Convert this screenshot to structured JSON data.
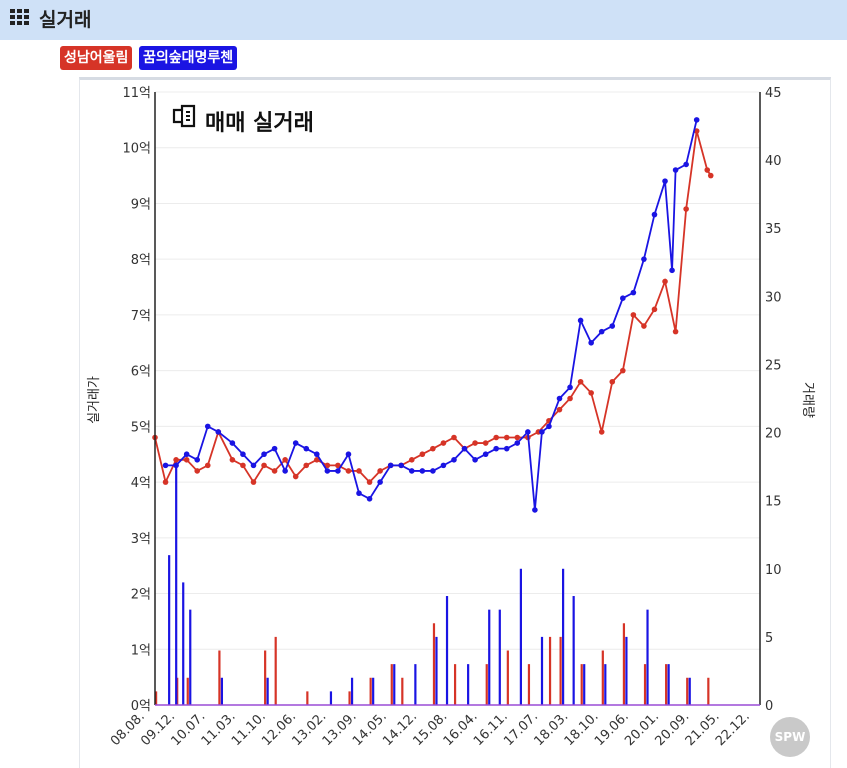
{
  "header": {
    "title": "실거래",
    "icon": "grid-icon"
  },
  "tags": [
    {
      "label": "성남어울림",
      "color": "#d63427"
    },
    {
      "label": "꿈의숲대명루첸",
      "color": "#1a14e3"
    }
  ],
  "chart_logo": {
    "text": "매매 실거래",
    "icon": "building-logo-icon"
  },
  "watermark": "SPW",
  "chart_data": {
    "type": "line",
    "left_axis": {
      "label": "실거래가",
      "range": [
        0,
        11
      ],
      "ticks": [
        "0억",
        "1억",
        "2억",
        "3억",
        "4억",
        "5억",
        "6억",
        "7억",
        "8억",
        "9억",
        "10억",
        "11억"
      ]
    },
    "right_axis": {
      "label": "거래량",
      "range": [
        0,
        45
      ],
      "ticks": [
        "0",
        "5",
        "10",
        "15",
        "20",
        "25",
        "30",
        "35",
        "40",
        "45"
      ]
    },
    "x_axis": {
      "range": [
        "2008-08",
        "2022-12"
      ],
      "ticks": [
        "08.08.",
        "09.12.",
        "10.07.",
        "11.03.",
        "11.10.",
        "12.06.",
        "13.02.",
        "13.09.",
        "14.05.",
        "14.12.",
        "15.08.",
        "16.04.",
        "16.11.",
        "17.07.",
        "18.03.",
        "18.10.",
        "19.06.",
        "20.01.",
        "20.09.",
        "21.05.",
        "22.12."
      ]
    },
    "grid": true,
    "series": [
      {
        "name": "성남어울림",
        "color": "#d63427",
        "type": "line",
        "points": [
          [
            "2008.08",
            4.8
          ],
          [
            "2008.11",
            4.0
          ],
          [
            "2009.02",
            4.4
          ],
          [
            "2009.05",
            4.4
          ],
          [
            "2009.08",
            4.2
          ],
          [
            "2009.11",
            4.3
          ],
          [
            "2010.02",
            4.9
          ],
          [
            "2010.06",
            4.4
          ],
          [
            "2010.09",
            4.3
          ],
          [
            "2010.12",
            4.0
          ],
          [
            "2011.03",
            4.3
          ],
          [
            "2011.06",
            4.2
          ],
          [
            "2011.09",
            4.4
          ],
          [
            "2011.12",
            4.1
          ],
          [
            "2012.03",
            4.3
          ],
          [
            "2012.06",
            4.4
          ],
          [
            "2012.09",
            4.3
          ],
          [
            "2012.12",
            4.3
          ],
          [
            "2013.03",
            4.2
          ],
          [
            "2013.06",
            4.2
          ],
          [
            "2013.09",
            4.0
          ],
          [
            "2013.12",
            4.2
          ],
          [
            "2014.03",
            4.3
          ],
          [
            "2014.06",
            4.3
          ],
          [
            "2014.09",
            4.4
          ],
          [
            "2014.12",
            4.5
          ],
          [
            "2015.03",
            4.6
          ],
          [
            "2015.06",
            4.7
          ],
          [
            "2015.09",
            4.8
          ],
          [
            "2015.12",
            4.6
          ],
          [
            "2016.03",
            4.7
          ],
          [
            "2016.06",
            4.7
          ],
          [
            "2016.09",
            4.8
          ],
          [
            "2016.12",
            4.8
          ],
          [
            "2017.03",
            4.8
          ],
          [
            "2017.06",
            4.8
          ],
          [
            "2017.09",
            4.9
          ],
          [
            "2017.12",
            5.1
          ],
          [
            "2018.03",
            5.3
          ],
          [
            "2018.06",
            5.5
          ],
          [
            "2018.09",
            5.8
          ],
          [
            "2018.12",
            5.6
          ],
          [
            "2019.03",
            4.9
          ],
          [
            "2019.06",
            5.8
          ],
          [
            "2019.09",
            6.0
          ],
          [
            "2019.12",
            7.0
          ],
          [
            "2020.03",
            6.8
          ],
          [
            "2020.06",
            7.1
          ],
          [
            "2020.09",
            7.6
          ],
          [
            "2020.12",
            6.7
          ],
          [
            "2021.03",
            8.9
          ],
          [
            "2021.06",
            10.3
          ],
          [
            "2021.09",
            9.6
          ],
          [
            "2021.10",
            9.5
          ]
        ]
      },
      {
        "name": "꿈의숲대명루첸",
        "color": "#1a14e3",
        "type": "line",
        "points": [
          [
            "2008.11",
            4.3
          ],
          [
            "2009.02",
            4.3
          ],
          [
            "2009.05",
            4.5
          ],
          [
            "2009.08",
            4.4
          ],
          [
            "2009.11",
            5.0
          ],
          [
            "2010.02",
            4.9
          ],
          [
            "2010.06",
            4.7
          ],
          [
            "2010.09",
            4.5
          ],
          [
            "2010.12",
            4.3
          ],
          [
            "2011.03",
            4.5
          ],
          [
            "2011.06",
            4.6
          ],
          [
            "2011.09",
            4.2
          ],
          [
            "2011.12",
            4.7
          ],
          [
            "2012.03",
            4.6
          ],
          [
            "2012.06",
            4.5
          ],
          [
            "2012.09",
            4.2
          ],
          [
            "2012.12",
            4.2
          ],
          [
            "2013.03",
            4.5
          ],
          [
            "2013.06",
            3.8
          ],
          [
            "2013.09",
            3.7
          ],
          [
            "2013.12",
            4.0
          ],
          [
            "2014.03",
            4.3
          ],
          [
            "2014.06",
            4.3
          ],
          [
            "2014.09",
            4.2
          ],
          [
            "2014.12",
            4.2
          ],
          [
            "2015.03",
            4.2
          ],
          [
            "2015.06",
            4.3
          ],
          [
            "2015.09",
            4.4
          ],
          [
            "2015.12",
            4.6
          ],
          [
            "2016.03",
            4.4
          ],
          [
            "2016.06",
            4.5
          ],
          [
            "2016.09",
            4.6
          ],
          [
            "2016.12",
            4.6
          ],
          [
            "2017.03",
            4.7
          ],
          [
            "2017.06",
            4.9
          ],
          [
            "2017.08",
            3.5
          ],
          [
            "2017.10",
            4.9
          ],
          [
            "2017.12",
            5.0
          ],
          [
            "2018.03",
            5.5
          ],
          [
            "2018.06",
            5.7
          ],
          [
            "2018.09",
            6.9
          ],
          [
            "2018.12",
            6.5
          ],
          [
            "2019.03",
            6.7
          ],
          [
            "2019.06",
            6.8
          ],
          [
            "2019.09",
            7.3
          ],
          [
            "2019.12",
            7.4
          ],
          [
            "2020.03",
            8.0
          ],
          [
            "2020.06",
            8.8
          ],
          [
            "2020.09",
            9.4
          ],
          [
            "2020.11",
            7.8
          ],
          [
            "2020.12",
            9.6
          ],
          [
            "2021.03",
            9.7
          ],
          [
            "2021.06",
            10.5
          ]
        ]
      }
    ],
    "volume_bars": {
      "axis": "right",
      "series": [
        {
          "name": "성남어울림",
          "color": "#d63427",
          "values": [
            [
              "2008.08",
              1
            ],
            [
              "2009.02",
              2
            ],
            [
              "2009.05",
              2
            ],
            [
              "2010.02",
              4
            ],
            [
              "2011.03",
              4
            ],
            [
              "2011.06",
              5
            ],
            [
              "2012.03",
              1
            ],
            [
              "2013.03",
              1
            ],
            [
              "2013.09",
              2
            ],
            [
              "2014.03",
              3
            ],
            [
              "2014.06",
              2
            ],
            [
              "2015.03",
              6
            ],
            [
              "2015.09",
              3
            ],
            [
              "2016.06",
              3
            ],
            [
              "2016.12",
              4
            ],
            [
              "2017.06",
              3
            ],
            [
              "2017.12",
              5
            ],
            [
              "2018.03",
              5
            ],
            [
              "2018.09",
              3
            ],
            [
              "2019.03",
              4
            ],
            [
              "2019.09",
              6
            ],
            [
              "2020.03",
              3
            ],
            [
              "2020.09",
              3
            ],
            [
              "2021.03",
              2
            ],
            [
              "2021.09",
              2
            ]
          ]
        },
        {
          "name": "꿈의숲대명루첸",
          "color": "#1a14e3",
          "values": [
            [
              "2008.11",
              11
            ],
            [
              "2009.01",
              18
            ],
            [
              "2009.03",
              9
            ],
            [
              "2009.05",
              7
            ],
            [
              "2010.02",
              2
            ],
            [
              "2011.03",
              2
            ],
            [
              "2012.09",
              1
            ],
            [
              "2013.03",
              2
            ],
            [
              "2013.09",
              2
            ],
            [
              "2014.03",
              3
            ],
            [
              "2014.09",
              3
            ],
            [
              "2015.03",
              5
            ],
            [
              "2015.06",
              8
            ],
            [
              "2015.12",
              3
            ],
            [
              "2016.06",
              7
            ],
            [
              "2016.09",
              7
            ],
            [
              "2017.03",
              10
            ],
            [
              "2017.09",
              5
            ],
            [
              "2018.03",
              10
            ],
            [
              "2018.06",
              8
            ],
            [
              "2018.09",
              3
            ],
            [
              "2019.03",
              3
            ],
            [
              "2019.09",
              5
            ],
            [
              "2020.03",
              7
            ],
            [
              "2020.09",
              3
            ],
            [
              "2021.03",
              2
            ]
          ]
        }
      ]
    }
  }
}
